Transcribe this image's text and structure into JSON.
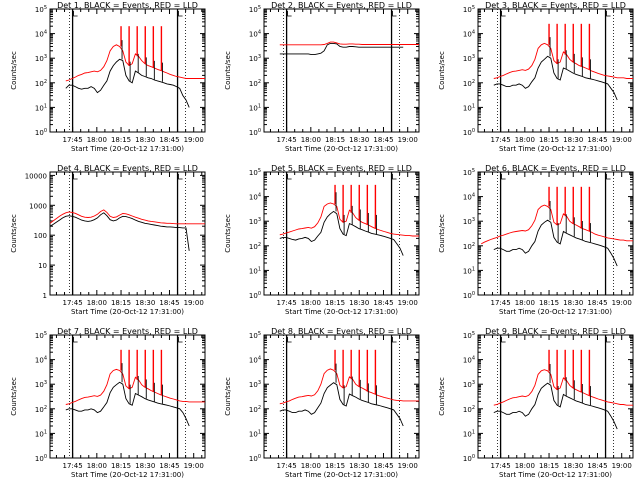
{
  "panels": [
    {
      "title": "Det 1, BLACK = Events, RED = LLD",
      "ylabel": "Counts/sec",
      "xlabel": "Start Time (20-Oct-12 17:31:00)",
      "yscale": "log",
      "ylim": [
        1,
        100000
      ],
      "ytick_style": "power",
      "black_profile": [
        null,
        null,
        null,
        null,
        null,
        60,
        80,
        80,
        70,
        60,
        55,
        60,
        60,
        70,
        60,
        40,
        50,
        80,
        120,
        300,
        500,
        700,
        900,
        800,
        200,
        120,
        100,
        300,
        250,
        200,
        180,
        160,
        150,
        130,
        120,
        110,
        100,
        90,
        85,
        80,
        70,
        60,
        30,
        20,
        10,
        null,
        null,
        null,
        null,
        null
      ],
      "red_profile": [
        null,
        null,
        null,
        null,
        null,
        120,
        130,
        150,
        170,
        200,
        220,
        250,
        260,
        280,
        300,
        280,
        320,
        450,
        800,
        2000,
        3000,
        3500,
        3000,
        2000,
        700,
        500,
        600,
        1500,
        1200,
        800,
        600,
        500,
        450,
        400,
        350,
        320,
        280,
        250,
        220,
        200,
        180,
        170,
        160,
        150,
        150,
        150,
        150,
        150,
        150,
        150
      ],
      "red_spikes": [
        "18:15",
        "18:20",
        "18:25",
        "18:30",
        "18:35",
        "18:40"
      ],
      "spike_peak": 20000
    },
    {
      "title": "Det 2, BLACK = Events, RED = LLD",
      "ylabel": "Counts/sec",
      "xlabel": "Start Time (20-Oct-12 17:31:00)",
      "yscale": "log",
      "ylim": [
        1,
        100000
      ],
      "ytick_style": "power",
      "black_profile": [
        null,
        null,
        null,
        null,
        null,
        1500,
        1500,
        1500,
        1500,
        1500,
        1500,
        1500,
        1500,
        1500,
        1500,
        1400,
        1400,
        1500,
        1600,
        2000,
        3500,
        4000,
        4000,
        3800,
        3000,
        2800,
        2800,
        3000,
        3000,
        2900,
        2800,
        2800,
        2800,
        2800,
        2800,
        2800,
        2800,
        2800,
        2800,
        2800,
        2800,
        2800,
        2800,
        2800,
        2800,
        null,
        null,
        null,
        null,
        null
      ],
      "red_profile": [
        null,
        null,
        null,
        null,
        null,
        3500,
        3500,
        3500,
        3500,
        3500,
        3500,
        3500,
        3500,
        3500,
        3500,
        3500,
        3500,
        3500,
        3500,
        3600,
        4000,
        4500,
        4500,
        4200,
        3800,
        3700,
        3700,
        3800,
        3800,
        3700,
        3700,
        3600,
        3600,
        3600,
        3600,
        3600,
        3600,
        3600,
        3600,
        3600,
        3600,
        3600,
        3600,
        3600,
        3600,
        3600,
        3600,
        3600,
        3600,
        3600
      ],
      "red_spikes": [],
      "spike_peak": 0
    },
    {
      "title": "Det 3, BLACK = Events, RED = LLD",
      "ylabel": "Counts/sec",
      "xlabel": "Start Time (20-Oct-12 17:31:00)",
      "yscale": "log",
      "ylim": [
        1,
        100000
      ],
      "ytick_style": "power",
      "black_profile": [
        null,
        null,
        null,
        null,
        null,
        80,
        90,
        90,
        80,
        70,
        70,
        80,
        80,
        90,
        80,
        60,
        70,
        110,
        160,
        400,
        700,
        900,
        1200,
        1000,
        250,
        150,
        130,
        400,
        350,
        300,
        250,
        220,
        200,
        180,
        160,
        150,
        140,
        130,
        120,
        110,
        100,
        90,
        60,
        40,
        20,
        null,
        null,
        null,
        null,
        null
      ],
      "red_profile": [
        null,
        null,
        null,
        null,
        null,
        150,
        160,
        180,
        200,
        230,
        260,
        290,
        300,
        320,
        340,
        320,
        360,
        500,
        900,
        2500,
        3500,
        4000,
        3500,
        2500,
        800,
        600,
        700,
        1800,
        1400,
        900,
        700,
        600,
        500,
        450,
        400,
        350,
        300,
        270,
        240,
        220,
        200,
        190,
        180,
        170,
        160,
        160,
        160,
        150,
        150,
        150
      ],
      "red_spikes": [
        "18:15",
        "18:20",
        "18:25",
        "18:30",
        "18:35",
        "18:40"
      ],
      "spike_peak": 25000
    },
    {
      "title": "Det 4, BLACK = Events, RED = LLD",
      "ylabel": "Counts/sec",
      "xlabel": "Start Time (20-Oct-12 17:31:00)",
      "yscale": "log",
      "ylim": [
        1,
        13000
      ],
      "ytick_style": "plain",
      "black_profile": [
        200,
        230,
        270,
        320,
        380,
        430,
        450,
        430,
        400,
        360,
        320,
        300,
        290,
        300,
        330,
        380,
        480,
        560,
        450,
        330,
        300,
        320,
        380,
        430,
        420,
        390,
        360,
        320,
        290,
        270,
        250,
        240,
        230,
        220,
        210,
        200,
        195,
        190,
        190,
        185,
        180,
        180,
        175,
        175,
        30,
        null,
        null,
        null,
        null,
        null
      ],
      "red_profile": [
        250,
        300,
        360,
        430,
        500,
        560,
        600,
        580,
        540,
        480,
        430,
        400,
        390,
        400,
        440,
        500,
        620,
        700,
        580,
        430,
        390,
        410,
        470,
        530,
        520,
        480,
        440,
        400,
        370,
        340,
        320,
        300,
        290,
        280,
        270,
        260,
        255,
        250,
        250,
        245,
        240,
        240,
        240,
        240,
        240,
        240,
        240,
        240,
        240,
        240
      ],
      "red_spikes": [],
      "spike_peak": 0
    },
    {
      "title": "Det 5, BLACK = Events, RED = LLD",
      "ylabel": "Counts/sec",
      "xlabel": "Start Time (20-Oct-12 17:31:00)",
      "yscale": "log",
      "ylim": [
        1,
        100000
      ],
      "ytick_style": "power",
      "black_profile": [
        null,
        null,
        null,
        null,
        null,
        200,
        220,
        220,
        200,
        180,
        170,
        190,
        200,
        220,
        200,
        150,
        170,
        250,
        350,
        900,
        1500,
        2000,
        2500,
        2000,
        500,
        300,
        260,
        800,
        700,
        600,
        500,
        450,
        400,
        360,
        320,
        300,
        280,
        260,
        240,
        220,
        200,
        180,
        120,
        80,
        40,
        null,
        null,
        null,
        null,
        null
      ],
      "red_profile": [
        null,
        null,
        null,
        null,
        null,
        280,
        300,
        330,
        360,
        400,
        440,
        480,
        500,
        530,
        560,
        520,
        600,
        850,
        1500,
        4000,
        5000,
        5500,
        5000,
        4000,
        1200,
        900,
        1000,
        2800,
        2200,
        1400,
        1100,
        900,
        800,
        700,
        600,
        520,
        460,
        420,
        380,
        350,
        320,
        300,
        290,
        280,
        270,
        260,
        260,
        250,
        250,
        250
      ],
      "red_spikes": [
        "18:15",
        "18:20",
        "18:25",
        "18:30",
        "18:35",
        "18:40"
      ],
      "spike_peak": 30000
    },
    {
      "title": "Det 6, BLACK = Events, RED = LLD",
      "ylabel": "Counts/sec",
      "xlabel": "Start Time (20-Oct-12 17:31:00)",
      "yscale": "log",
      "ylim": [
        1,
        100000
      ],
      "ytick_style": "power",
      "black_profile": [
        null,
        null,
        null,
        null,
        null,
        70,
        80,
        80,
        70,
        60,
        60,
        70,
        70,
        80,
        70,
        50,
        60,
        100,
        150,
        400,
        700,
        900,
        1100,
        900,
        220,
        140,
        120,
        380,
        320,
        280,
        240,
        210,
        190,
        170,
        150,
        140,
        130,
        120,
        110,
        100,
        90,
        80,
        50,
        30,
        15,
        null,
        null,
        null,
        null,
        null
      ],
      "red_profile": [
        null,
        120,
        140,
        160,
        180,
        200,
        220,
        250,
        270,
        300,
        330,
        360,
        380,
        400,
        420,
        400,
        450,
        650,
        1100,
        3000,
        4000,
        4500,
        4000,
        3000,
        900,
        700,
        800,
        2000,
        1600,
        1000,
        800,
        700,
        600,
        500,
        450,
        400,
        350,
        300,
        270,
        250,
        230,
        210,
        200,
        190,
        180,
        170,
        170,
        160,
        160,
        160
      ],
      "red_spikes": [
        "18:15",
        "18:20",
        "18:25",
        "18:30",
        "18:35",
        "18:40"
      ],
      "spike_peak": 25000
    },
    {
      "title": "Det 7, BLACK = Events, RED = LLD",
      "ylabel": "Counts/sec",
      "xlabel": "Start Time (20-Oct-12 17:31:00)",
      "yscale": "log",
      "ylim": [
        1,
        100000
      ],
      "ytick_style": "power",
      "black_profile": [
        null,
        null,
        null,
        null,
        null,
        90,
        100,
        100,
        90,
        80,
        80,
        90,
        90,
        100,
        90,
        70,
        80,
        120,
        180,
        450,
        750,
        950,
        1200,
        1000,
        260,
        160,
        140,
        420,
        360,
        310,
        260,
        230,
        210,
        190,
        170,
        160,
        150,
        140,
        130,
        120,
        110,
        100,
        70,
        40,
        20,
        null,
        null,
        null,
        null,
        null
      ],
      "red_profile": [
        null,
        null,
        null,
        null,
        null,
        150,
        160,
        180,
        200,
        230,
        260,
        290,
        300,
        320,
        340,
        320,
        360,
        520,
        950,
        2600,
        3600,
        4000,
        3600,
        2600,
        850,
        650,
        750,
        1900,
        1500,
        950,
        750,
        650,
        550,
        480,
        420,
        370,
        330,
        300,
        270,
        250,
        230,
        210,
        200,
        200,
        190,
        190,
        190,
        190,
        190,
        190
      ],
      "red_spikes": [
        "18:15",
        "18:20",
        "18:25",
        "18:30",
        "18:35",
        "18:40"
      ],
      "spike_peak": 25000
    },
    {
      "title": "Det 8, BLACK = Events, RED = LLD",
      "ylabel": "Counts/sec",
      "xlabel": "Start Time (20-Oct-12 17:31:00)",
      "yscale": "log",
      "ylim": [
        1,
        100000
      ],
      "ytick_style": "power",
      "black_profile": [
        null,
        null,
        null,
        null,
        null,
        80,
        90,
        90,
        80,
        70,
        70,
        80,
        80,
        90,
        80,
        60,
        70,
        110,
        170,
        420,
        720,
        920,
        1150,
        950,
        240,
        150,
        130,
        400,
        340,
        300,
        250,
        220,
        200,
        180,
        160,
        150,
        140,
        130,
        120,
        110,
        100,
        90,
        60,
        40,
        20,
        null,
        null,
        null,
        null,
        null
      ],
      "red_profile": [
        null,
        null,
        null,
        null,
        null,
        160,
        170,
        190,
        210,
        240,
        270,
        300,
        310,
        330,
        350,
        330,
        370,
        540,
        1000,
        2700,
        3700,
        4200,
        3700,
        2700,
        900,
        700,
        800,
        2000,
        1600,
        1000,
        800,
        700,
        600,
        500,
        450,
        400,
        350,
        320,
        290,
        270,
        250,
        230,
        220,
        220,
        210,
        210,
        210,
        210,
        210,
        210
      ],
      "red_spikes": [
        "18:15",
        "18:20",
        "18:25",
        "18:30",
        "18:35",
        "18:40"
      ],
      "spike_peak": 25000
    },
    {
      "title": "Det 9, BLACK = Events, RED = LLD",
      "ylabel": "Counts/sec",
      "xlabel": "Start Time (20-Oct-12 17:31:00)",
      "yscale": "log",
      "ylim": [
        1,
        100000
      ],
      "ytick_style": "power",
      "black_profile": [
        null,
        null,
        null,
        null,
        null,
        70,
        80,
        80,
        70,
        60,
        60,
        70,
        70,
        80,
        70,
        50,
        60,
        100,
        150,
        380,
        680,
        880,
        1100,
        900,
        220,
        140,
        120,
        380,
        320,
        280,
        240,
        210,
        190,
        170,
        150,
        140,
        130,
        120,
        110,
        100,
        90,
        80,
        50,
        30,
        15,
        null,
        null,
        null,
        null,
        null
      ],
      "red_profile": [
        null,
        null,
        null,
        null,
        null,
        140,
        150,
        170,
        190,
        220,
        250,
        280,
        290,
        310,
        330,
        310,
        350,
        500,
        900,
        2500,
        3500,
        3900,
        3500,
        2500,
        800,
        600,
        700,
        1800,
        1400,
        900,
        700,
        600,
        520,
        460,
        400,
        350,
        310,
        280,
        250,
        230,
        210,
        190,
        180,
        170,
        160,
        150,
        150,
        140,
        140,
        140
      ],
      "red_spikes": [
        "18:15",
        "18:20",
        "18:25",
        "18:30",
        "18:35",
        "18:40"
      ],
      "spike_peak": 25000
    }
  ],
  "chart_data": {
    "type": "line",
    "layout": "3x3 grid of detector panels",
    "x_ticks": [
      "17:45",
      "18:00",
      "18:15",
      "18:30",
      "18:45",
      "19:00"
    ],
    "x_range": [
      "17:31",
      "19:07"
    ],
    "time_markers": [
      "17:45",
      "18:50"
    ],
    "series": [
      {
        "name": "BLACK = Events",
        "color": "#000000"
      },
      {
        "name": "RED = LLD",
        "color": "#ff0000"
      }
    ]
  },
  "colors": {
    "events": "#000000",
    "lld": "#ff0000",
    "axes": "#000000",
    "background": "#ffffff"
  }
}
